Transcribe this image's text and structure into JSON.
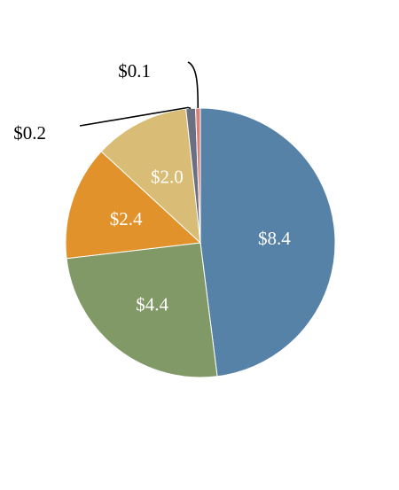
{
  "chart_data": {
    "type": "pie",
    "title": "",
    "currency_prefix": "$",
    "start_angle_deg": 0,
    "direction": "clockwise",
    "legend": "none",
    "slices": [
      {
        "label": "$8.4",
        "value": 8.4,
        "color": "#5682a8",
        "label_color": "#ffffff",
        "label_style": "inside"
      },
      {
        "label": "$4.4",
        "value": 4.4,
        "color": "#819967",
        "label_color": "#ffffff",
        "label_style": "inside"
      },
      {
        "label": "$2.4",
        "value": 2.4,
        "color": "#e1922b",
        "label_color": "#ffffff",
        "label_style": "inside"
      },
      {
        "label": "$2.0",
        "value": 2.0,
        "color": "#d9bd76",
        "label_color": "#ffffff",
        "label_style": "inside"
      },
      {
        "label": "$0.2",
        "value": 0.2,
        "color": "#6b6f82",
        "label_color": "#000000",
        "label_style": "callout"
      },
      {
        "label": "$0.1",
        "value": 0.1,
        "color": "#d9807a",
        "label_color": "#000000",
        "label_style": "callout"
      }
    ]
  }
}
